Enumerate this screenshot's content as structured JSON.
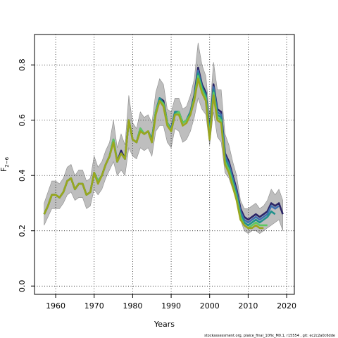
{
  "chart_data": {
    "type": "line",
    "title": "",
    "xlabel": "Years",
    "ylabel_main": "F",
    "ylabel_sub": "2−6",
    "xlim": [
      1954.5,
      2022
    ],
    "ylim": [
      -0.03,
      0.91
    ],
    "xticks": [
      1960,
      1970,
      1980,
      1990,
      2000,
      2010,
      2020
    ],
    "yticks": [
      0.0,
      0.2,
      0.4,
      0.6,
      0.8
    ],
    "grid": true,
    "footnote": "stockassessment.org, plaice_final_10fix_M0.1, r15554 , git: ec2c2a0c6dde",
    "ci_color": "#bebebe",
    "ci": {
      "x": [
        1957,
        1958,
        1959,
        1960,
        1961,
        1962,
        1963,
        1964,
        1965,
        1966,
        1967,
        1968,
        1969,
        1970,
        1971,
        1972,
        1973,
        1974,
        1975,
        1976,
        1977,
        1978,
        1979,
        1980,
        1981,
        1982,
        1983,
        1984,
        1985,
        1986,
        1987,
        1988,
        1989,
        1990,
        1991,
        1992,
        1993,
        1994,
        1995,
        1996,
        1997,
        1998,
        1999,
        2000,
        2001,
        2002,
        2003,
        2004,
        2005,
        2006,
        2007,
        2008,
        2009,
        2010,
        2011,
        2012,
        2013,
        2014,
        2015,
        2016,
        2017,
        2018,
        2019
      ],
      "lower": [
        0.22,
        0.25,
        0.28,
        0.28,
        0.28,
        0.3,
        0.33,
        0.34,
        0.31,
        0.32,
        0.32,
        0.28,
        0.29,
        0.35,
        0.33,
        0.35,
        0.39,
        0.42,
        0.45,
        0.4,
        0.42,
        0.4,
        0.5,
        0.47,
        0.46,
        0.5,
        0.49,
        0.5,
        0.47,
        0.56,
        0.58,
        0.58,
        0.52,
        0.5,
        0.57,
        0.56,
        0.52,
        0.53,
        0.56,
        0.61,
        0.68,
        0.64,
        0.62,
        0.51,
        0.63,
        0.54,
        0.52,
        0.41,
        0.39,
        0.35,
        0.31,
        0.24,
        0.2,
        0.19,
        0.2,
        0.2,
        0.19,
        0.2,
        0.21,
        0.22,
        0.23,
        0.24,
        0.2
      ],
      "upper": [
        0.3,
        0.34,
        0.38,
        0.38,
        0.37,
        0.39,
        0.43,
        0.44,
        0.4,
        0.42,
        0.42,
        0.38,
        0.39,
        0.47,
        0.43,
        0.45,
        0.49,
        0.52,
        0.6,
        0.5,
        0.55,
        0.51,
        0.69,
        0.59,
        0.57,
        0.63,
        0.61,
        0.62,
        0.59,
        0.7,
        0.75,
        0.73,
        0.64,
        0.63,
        0.68,
        0.68,
        0.64,
        0.65,
        0.69,
        0.75,
        0.88,
        0.8,
        0.76,
        0.62,
        0.81,
        0.71,
        0.71,
        0.55,
        0.51,
        0.45,
        0.4,
        0.31,
        0.28,
        0.28,
        0.29,
        0.3,
        0.28,
        0.29,
        0.31,
        0.35,
        0.33,
        0.35,
        0.31
      ]
    },
    "series": [
      {
        "color": "#2b2466",
        "x": [
          1957,
          1958,
          1959,
          1960,
          1961,
          1962,
          1963,
          1964,
          1965,
          1966,
          1967,
          1968,
          1969,
          1970,
          1971,
          1972,
          1973,
          1974,
          1975,
          1976,
          1977,
          1978,
          1979,
          1980,
          1981,
          1982,
          1983,
          1984,
          1985,
          1986,
          1987,
          1988,
          1989,
          1990,
          1991,
          1992,
          1993,
          1994,
          1995,
          1996,
          1997,
          1998,
          1999,
          2000,
          2001,
          2002,
          2003,
          2004,
          2005,
          2006,
          2007,
          2008,
          2009,
          2010,
          2011,
          2012,
          2013,
          2014,
          2015,
          2016,
          2017,
          2018,
          2019
        ],
        "values": [
          0.26,
          0.29,
          0.33,
          0.33,
          0.32,
          0.34,
          0.38,
          0.39,
          0.35,
          0.37,
          0.37,
          0.33,
          0.34,
          0.41,
          0.38,
          0.4,
          0.44,
          0.47,
          0.53,
          0.45,
          0.49,
          0.46,
          0.6,
          0.53,
          0.52,
          0.57,
          0.55,
          0.56,
          0.53,
          0.63,
          0.68,
          0.67,
          0.59,
          0.57,
          0.63,
          0.63,
          0.59,
          0.6,
          0.63,
          0.69,
          0.79,
          0.73,
          0.7,
          0.56,
          0.73,
          0.64,
          0.63,
          0.48,
          0.45,
          0.4,
          0.35,
          0.28,
          0.25,
          0.24,
          0.25,
          0.26,
          0.25,
          0.26,
          0.27,
          0.3,
          0.29,
          0.3,
          0.26
        ]
      },
      {
        "color": "#3f6fb0",
        "x": [
          1957,
          1958,
          1959,
          1960,
          1961,
          1962,
          1963,
          1964,
          1965,
          1966,
          1967,
          1968,
          1969,
          1970,
          1971,
          1972,
          1973,
          1974,
          1975,
          1976,
          1977,
          1978,
          1979,
          1980,
          1981,
          1982,
          1983,
          1984,
          1985,
          1986,
          1987,
          1988,
          1989,
          1990,
          1991,
          1992,
          1993,
          1994,
          1995,
          1996,
          1997,
          1998,
          1999,
          2000,
          2001,
          2002,
          2003,
          2004,
          2005,
          2006,
          2007,
          2008,
          2009,
          2010,
          2011,
          2012,
          2013,
          2014,
          2015,
          2016,
          2017,
          2018
        ],
        "values": [
          0.26,
          0.29,
          0.33,
          0.33,
          0.32,
          0.34,
          0.38,
          0.39,
          0.35,
          0.37,
          0.37,
          0.33,
          0.34,
          0.41,
          0.38,
          0.4,
          0.44,
          0.47,
          0.53,
          0.45,
          0.48,
          0.46,
          0.6,
          0.53,
          0.52,
          0.57,
          0.55,
          0.56,
          0.53,
          0.63,
          0.68,
          0.66,
          0.59,
          0.57,
          0.63,
          0.63,
          0.59,
          0.6,
          0.63,
          0.68,
          0.78,
          0.72,
          0.69,
          0.55,
          0.72,
          0.63,
          0.62,
          0.47,
          0.44,
          0.39,
          0.34,
          0.27,
          0.24,
          0.23,
          0.24,
          0.25,
          0.24,
          0.25,
          0.26,
          0.29,
          0.28,
          0.29
        ]
      },
      {
        "color": "#21918c",
        "x": [
          1957,
          1958,
          1959,
          1960,
          1961,
          1962,
          1963,
          1964,
          1965,
          1966,
          1967,
          1968,
          1969,
          1970,
          1971,
          1972,
          1973,
          1974,
          1975,
          1976,
          1977,
          1978,
          1979,
          1980,
          1981,
          1982,
          1983,
          1984,
          1985,
          1986,
          1987,
          1988,
          1989,
          1990,
          1991,
          1992,
          1993,
          1994,
          1995,
          1996,
          1997,
          1998,
          1999,
          2000,
          2001,
          2002,
          2003,
          2004,
          2005,
          2006,
          2007,
          2008,
          2009,
          2010,
          2011,
          2012,
          2013,
          2014,
          2015,
          2016,
          2017
        ],
        "values": [
          0.26,
          0.29,
          0.33,
          0.33,
          0.32,
          0.34,
          0.38,
          0.39,
          0.35,
          0.37,
          0.37,
          0.33,
          0.34,
          0.41,
          0.38,
          0.4,
          0.44,
          0.47,
          0.53,
          0.45,
          0.48,
          0.46,
          0.6,
          0.53,
          0.52,
          0.57,
          0.55,
          0.56,
          0.53,
          0.63,
          0.68,
          0.66,
          0.59,
          0.56,
          0.63,
          0.63,
          0.59,
          0.6,
          0.63,
          0.68,
          0.77,
          0.72,
          0.69,
          0.55,
          0.71,
          0.62,
          0.61,
          0.46,
          0.43,
          0.38,
          0.33,
          0.26,
          0.23,
          0.22,
          0.23,
          0.24,
          0.23,
          0.24,
          0.25,
          0.27,
          0.26
        ]
      },
      {
        "color": "#5ec962",
        "x": [
          1957,
          1958,
          1959,
          1960,
          1961,
          1962,
          1963,
          1964,
          1965,
          1966,
          1967,
          1968,
          1969,
          1970,
          1971,
          1972,
          1973,
          1974,
          1975,
          1976,
          1977,
          1978,
          1979,
          1980,
          1981,
          1982,
          1983,
          1984,
          1985,
          1986,
          1987,
          1988,
          1989,
          1990,
          1991,
          1992,
          1993,
          1994,
          1995,
          1996,
          1997,
          1998,
          1999,
          2000,
          2001,
          2002,
          2003,
          2004,
          2005,
          2006,
          2007,
          2008,
          2009,
          2010,
          2011,
          2012,
          2013,
          2014,
          2015
        ],
        "values": [
          0.26,
          0.29,
          0.33,
          0.33,
          0.32,
          0.34,
          0.38,
          0.39,
          0.35,
          0.37,
          0.37,
          0.33,
          0.34,
          0.41,
          0.38,
          0.4,
          0.44,
          0.47,
          0.53,
          0.45,
          0.48,
          0.46,
          0.6,
          0.53,
          0.52,
          0.57,
          0.55,
          0.56,
          0.52,
          0.63,
          0.67,
          0.66,
          0.59,
          0.56,
          0.62,
          0.63,
          0.59,
          0.6,
          0.62,
          0.68,
          0.76,
          0.71,
          0.68,
          0.54,
          0.7,
          0.61,
          0.6,
          0.45,
          0.42,
          0.37,
          0.32,
          0.25,
          0.22,
          0.21,
          0.22,
          0.23,
          0.22,
          0.22,
          0.22
        ]
      },
      {
        "color": "#9aa61e",
        "x": [
          1957,
          1958,
          1959,
          1960,
          1961,
          1962,
          1963,
          1964,
          1965,
          1966,
          1967,
          1968,
          1969,
          1970,
          1971,
          1972,
          1973,
          1974,
          1975,
          1976,
          1977,
          1978,
          1979,
          1980,
          1981,
          1982,
          1983,
          1984,
          1985,
          1986,
          1987,
          1988,
          1989,
          1990,
          1991,
          1992,
          1993,
          1994,
          1995,
          1996,
          1997,
          1998,
          1999,
          2000,
          2001,
          2002,
          2003,
          2004,
          2005,
          2006,
          2007,
          2008,
          2009,
          2010,
          2011,
          2012,
          2013,
          2014
        ],
        "values": [
          0.26,
          0.29,
          0.33,
          0.33,
          0.32,
          0.34,
          0.38,
          0.39,
          0.35,
          0.37,
          0.37,
          0.33,
          0.34,
          0.41,
          0.37,
          0.4,
          0.44,
          0.47,
          0.52,
          0.45,
          0.48,
          0.46,
          0.6,
          0.53,
          0.52,
          0.56,
          0.55,
          0.56,
          0.52,
          0.62,
          0.67,
          0.65,
          0.58,
          0.56,
          0.62,
          0.62,
          0.58,
          0.59,
          0.62,
          0.67,
          0.75,
          0.7,
          0.67,
          0.53,
          0.69,
          0.6,
          0.59,
          0.44,
          0.41,
          0.36,
          0.31,
          0.24,
          0.22,
          0.21,
          0.21,
          0.22,
          0.21,
          0.21
        ]
      }
    ]
  }
}
